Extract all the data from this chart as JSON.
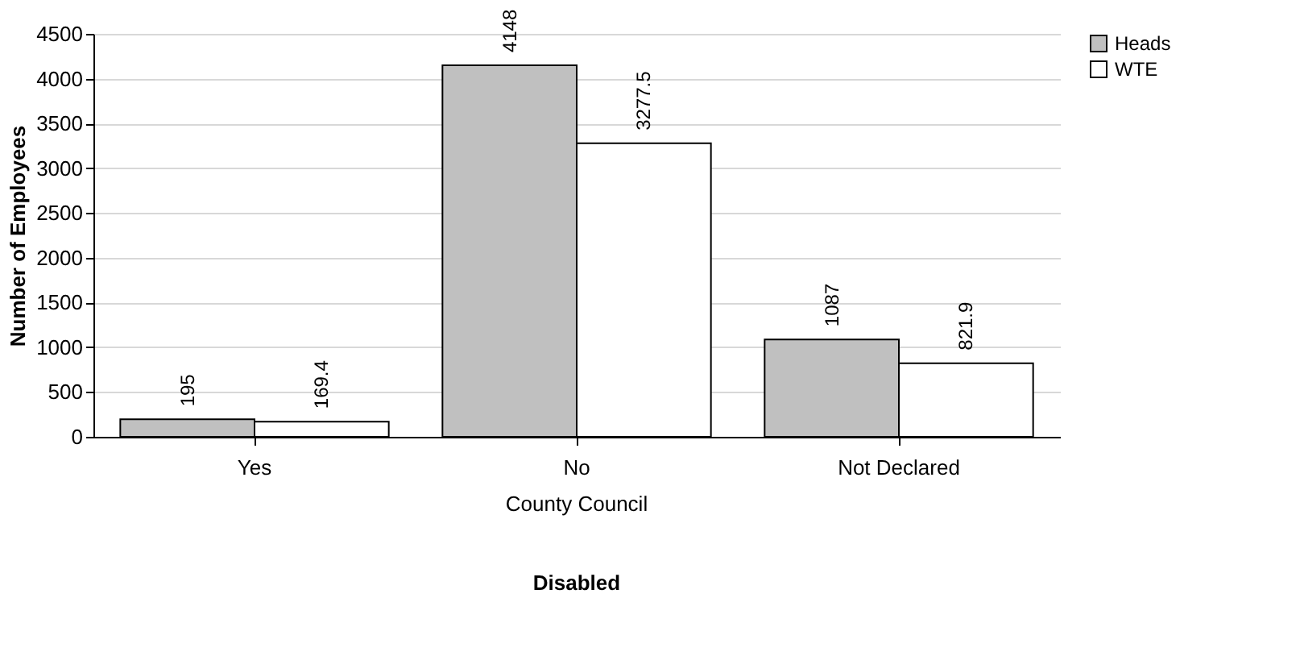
{
  "chart_data": {
    "type": "bar",
    "ylabel": "Number of Employees",
    "xlabel": "Disabled",
    "categories": [
      "Yes",
      "No",
      "Not Declared"
    ],
    "series": [
      {
        "name": "Heads",
        "color": "#c0c0c0",
        "values": [
          195,
          4148,
          1087
        ]
      },
      {
        "name": "WTE",
        "color": "#ffffff",
        "values": [
          169.4,
          3277.5,
          821.9
        ]
      }
    ],
    "ylim": [
      0,
      4500
    ],
    "yticks": [
      0,
      500,
      1000,
      1500,
      2000,
      2500,
      3000,
      3500,
      4000,
      4500
    ],
    "grid": "y",
    "legend": "right",
    "data_labels": true,
    "annotations": [
      "County Council"
    ]
  }
}
